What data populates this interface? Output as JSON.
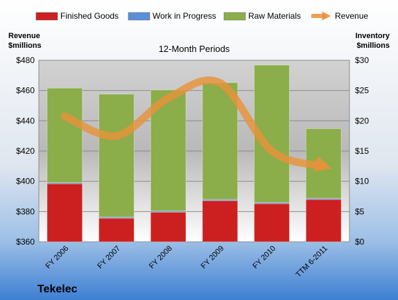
{
  "chart_data": {
    "type": "bar",
    "title": "12-Month Periods",
    "company": "Tekelec",
    "left_axis_label": [
      "Revenue",
      "$millions"
    ],
    "right_axis_label": [
      "Inventory",
      "$millions"
    ],
    "categories": [
      "FY 2006",
      "FY 2007",
      "FY 2008",
      "FY 2009",
      "FY 2010",
      "TTM 6-2011"
    ],
    "left_axis": {
      "min": 360,
      "max": 480,
      "step": 20,
      "tick_labels": [
        "$360",
        "$380",
        "$400",
        "$420",
        "$440",
        "$460",
        "$480"
      ]
    },
    "right_axis": {
      "min": 0,
      "max": 30,
      "step": 5,
      "tick_labels": [
        "$0",
        "$5",
        "$10",
        "$15",
        "$20",
        "$25",
        "$30"
      ]
    },
    "series": [
      {
        "name": "Finished Goods",
        "kind": "stacked-bar",
        "axis": "right",
        "color": "#cc2020",
        "values": [
          9.6,
          3.9,
          4.9,
          6.8,
          6.3,
          7.0
        ]
      },
      {
        "name": "Work in Progress",
        "kind": "stacked-bar",
        "axis": "right",
        "color": "#5b8fd6",
        "values": [
          0.2,
          0.2,
          0.2,
          0.2,
          0.2,
          0.2
        ]
      },
      {
        "name": "Raw Materials",
        "kind": "stacked-bar",
        "axis": "right",
        "color": "#8bad4a",
        "values": [
          15.6,
          20.3,
          20.0,
          19.3,
          22.7,
          11.5
        ]
      },
      {
        "name": "Revenue",
        "kind": "line",
        "axis": "left",
        "color": "#e8923a",
        "values": [
          443,
          430,
          455,
          465,
          420,
          410
        ]
      }
    ],
    "grid": true,
    "legend": "top"
  }
}
